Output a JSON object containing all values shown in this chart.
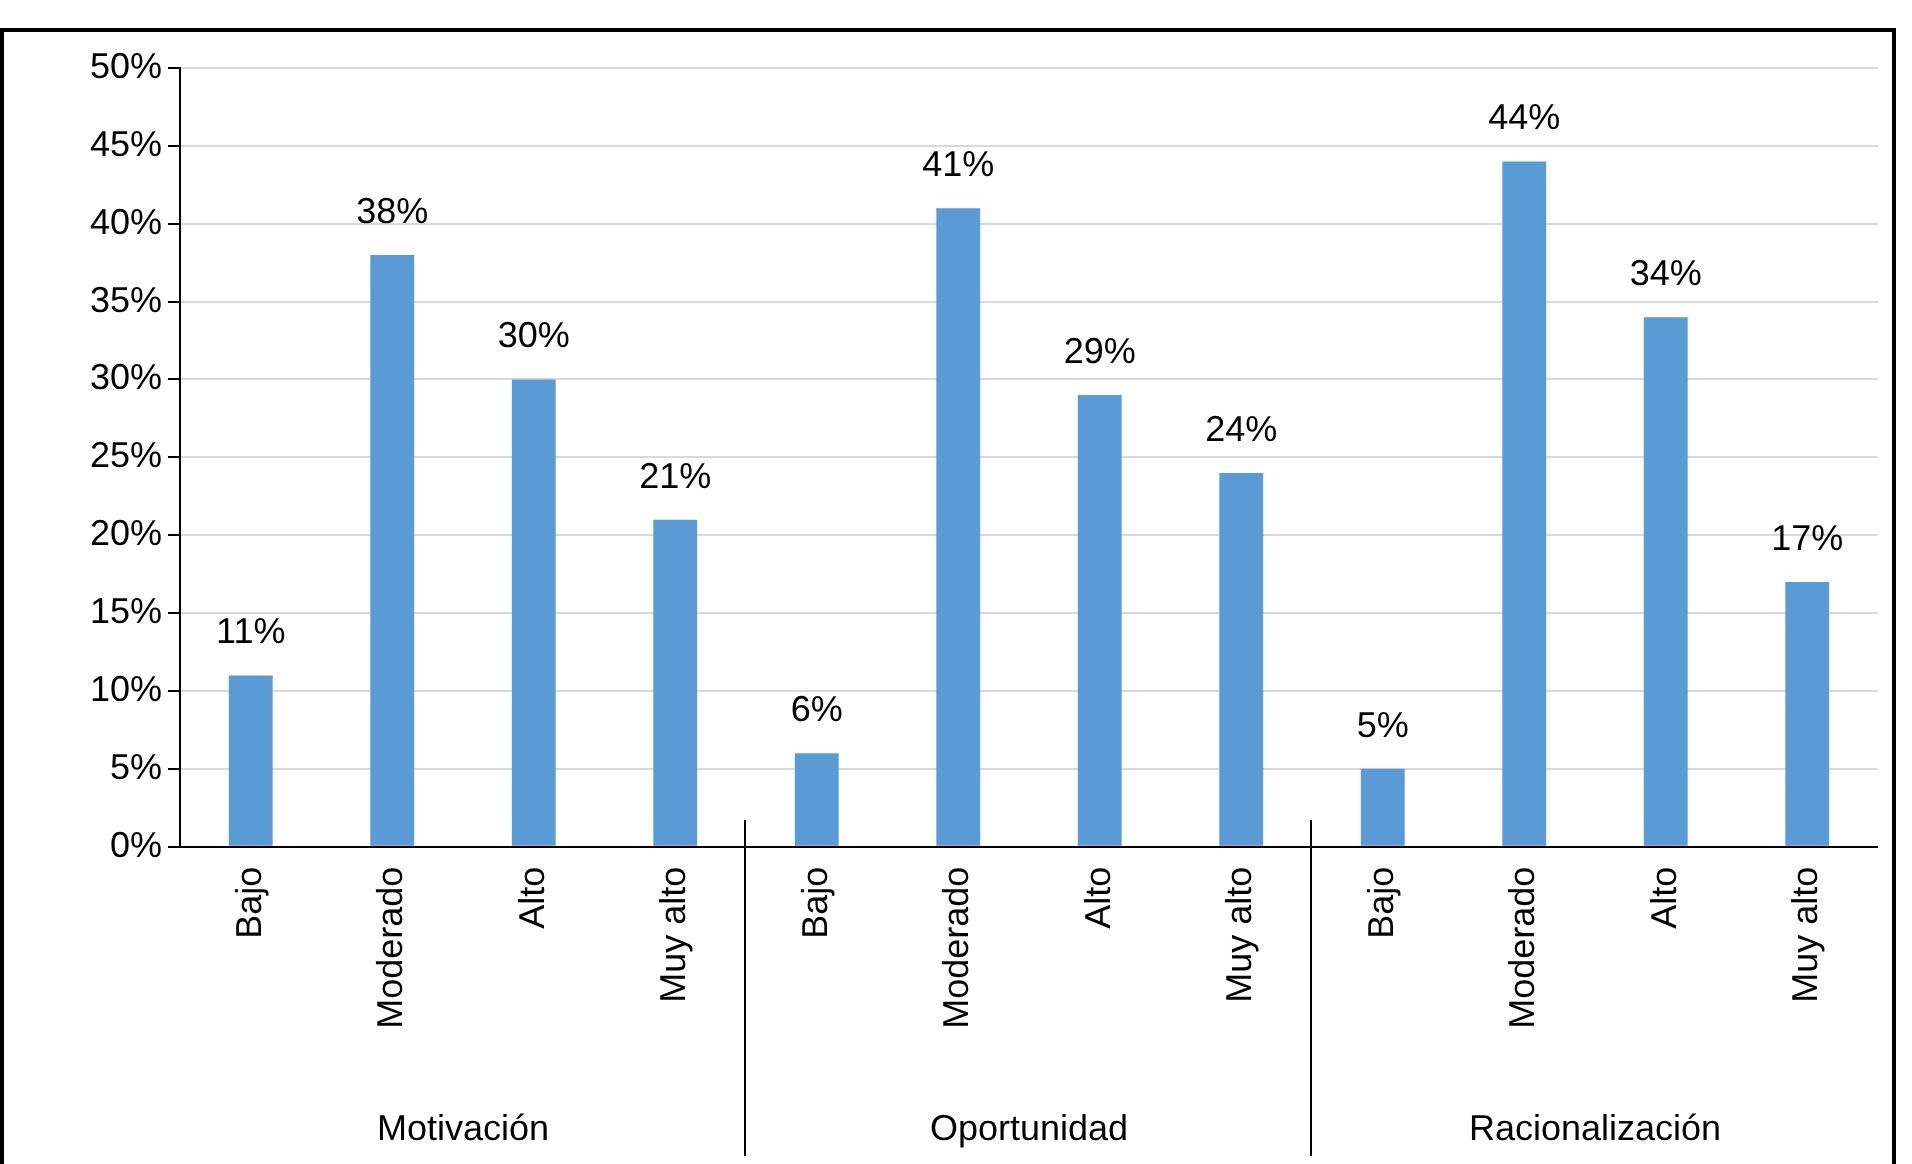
{
  "chart_data": [
    {
      "type": "bar",
      "xlabel": "Motivación",
      "categories": [
        "Bajo",
        "Moderado",
        "Alto",
        "Muy alto"
      ],
      "values": [
        11,
        38,
        30,
        21
      ],
      "value_labels": [
        "11%",
        "38%",
        "30%",
        "21%"
      ],
      "color": "#5b9bd5",
      "ylim": [
        0,
        50
      ],
      "yticks": [
        {
          "value": 0,
          "label": "0%"
        },
        {
          "value": 5,
          "label": "5%"
        },
        {
          "value": 10,
          "label": "10%"
        },
        {
          "value": 15,
          "label": "15%"
        },
        {
          "value": 20,
          "label": "20%"
        },
        {
          "value": 25,
          "label": "25%"
        },
        {
          "value": 30,
          "label": "30%"
        },
        {
          "value": 35,
          "label": "35%"
        },
        {
          "value": 40,
          "label": "40%"
        },
        {
          "value": 45,
          "label": "45%"
        },
        {
          "value": 50,
          "label": "50%"
        }
      ],
      "grid": "y"
    },
    {
      "type": "bar",
      "xlabel": "Oportunidad",
      "categories": [
        "Bajo",
        "Moderado",
        "Alto",
        "Muy alto"
      ],
      "values": [
        6,
        41,
        29,
        24
      ],
      "value_labels": [
        "6%",
        "41%",
        "29%",
        "24%"
      ],
      "color": "#5b9bd5",
      "ylim": [
        0,
        50
      ],
      "yticks": [
        0,
        5,
        10,
        15,
        20,
        25,
        30,
        35,
        40,
        45,
        50
      ],
      "grid": "y",
      "tick_labels": "x"
    },
    {
      "type": "bar",
      "xlabel": "Racionalización",
      "categories": [
        "Bajo",
        "Moderado",
        "Alto",
        "Muy alto"
      ],
      "values": [
        5,
        44,
        34,
        17
      ],
      "value_labels": [
        "5%",
        "44%",
        "34%",
        "17%"
      ],
      "color": "#5b9bd5",
      "ylim": [
        0,
        50
      ],
      "yticks": [
        0,
        5,
        10,
        15,
        20,
        25,
        30,
        35,
        40,
        45,
        50
      ],
      "grid": "y",
      "tick_labels": "x"
    }
  ]
}
